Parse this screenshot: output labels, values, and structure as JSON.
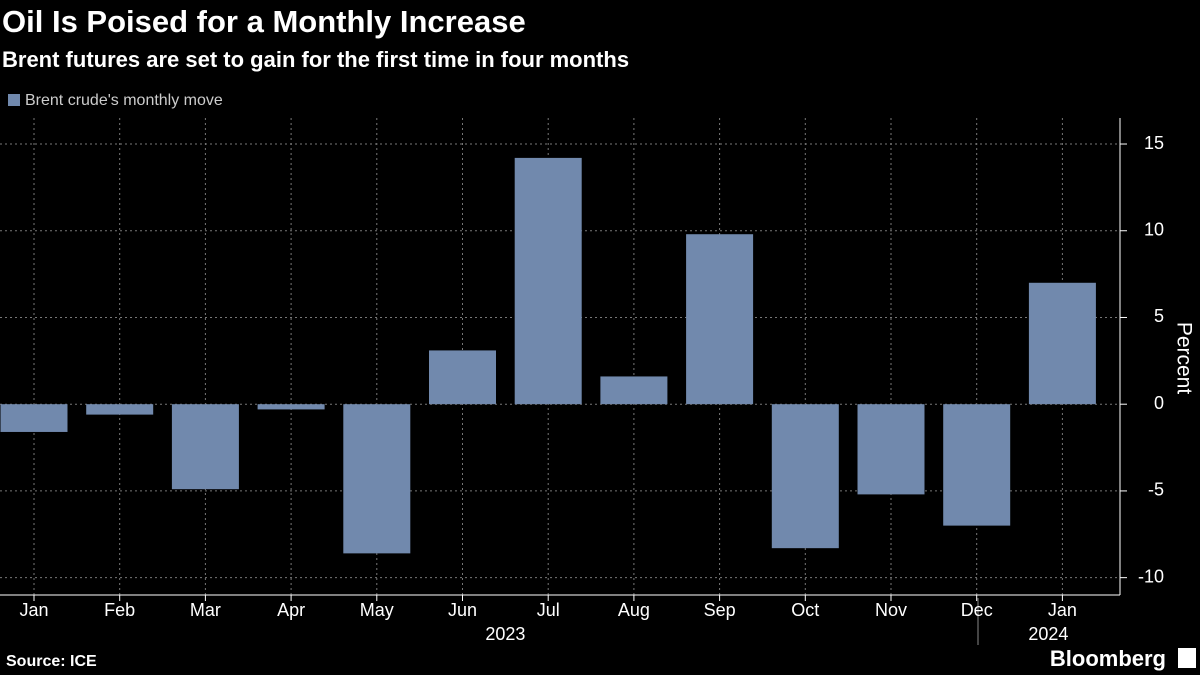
{
  "chart_data": {
    "type": "bar",
    "title": "Oil Is Poised for a Monthly Increase",
    "subtitle": "Brent futures are set to gain for the first time in four months",
    "categories": [
      "Jan",
      "Feb",
      "Mar",
      "Apr",
      "May",
      "Jun",
      "Jul",
      "Aug",
      "Sep",
      "Oct",
      "Nov",
      "Dec",
      "Jan"
    ],
    "year_labels": [
      "2023",
      "2024"
    ],
    "series": [
      {
        "name": "Brent crude's monthly move",
        "color": "#7189ad",
        "values": [
          -1.6,
          -0.6,
          -4.9,
          -0.3,
          -8.6,
          3.1,
          14.2,
          1.6,
          9.8,
          -8.3,
          -5.2,
          -7.0,
          7.0
        ]
      }
    ],
    "ylim": [
      -11,
      16.5
    ],
    "yticks": [
      -10,
      -5,
      0,
      5,
      10,
      15
    ],
    "grid": true,
    "y_label": "Percent",
    "source": "Source: ICE",
    "brand": "Bloomberg"
  }
}
